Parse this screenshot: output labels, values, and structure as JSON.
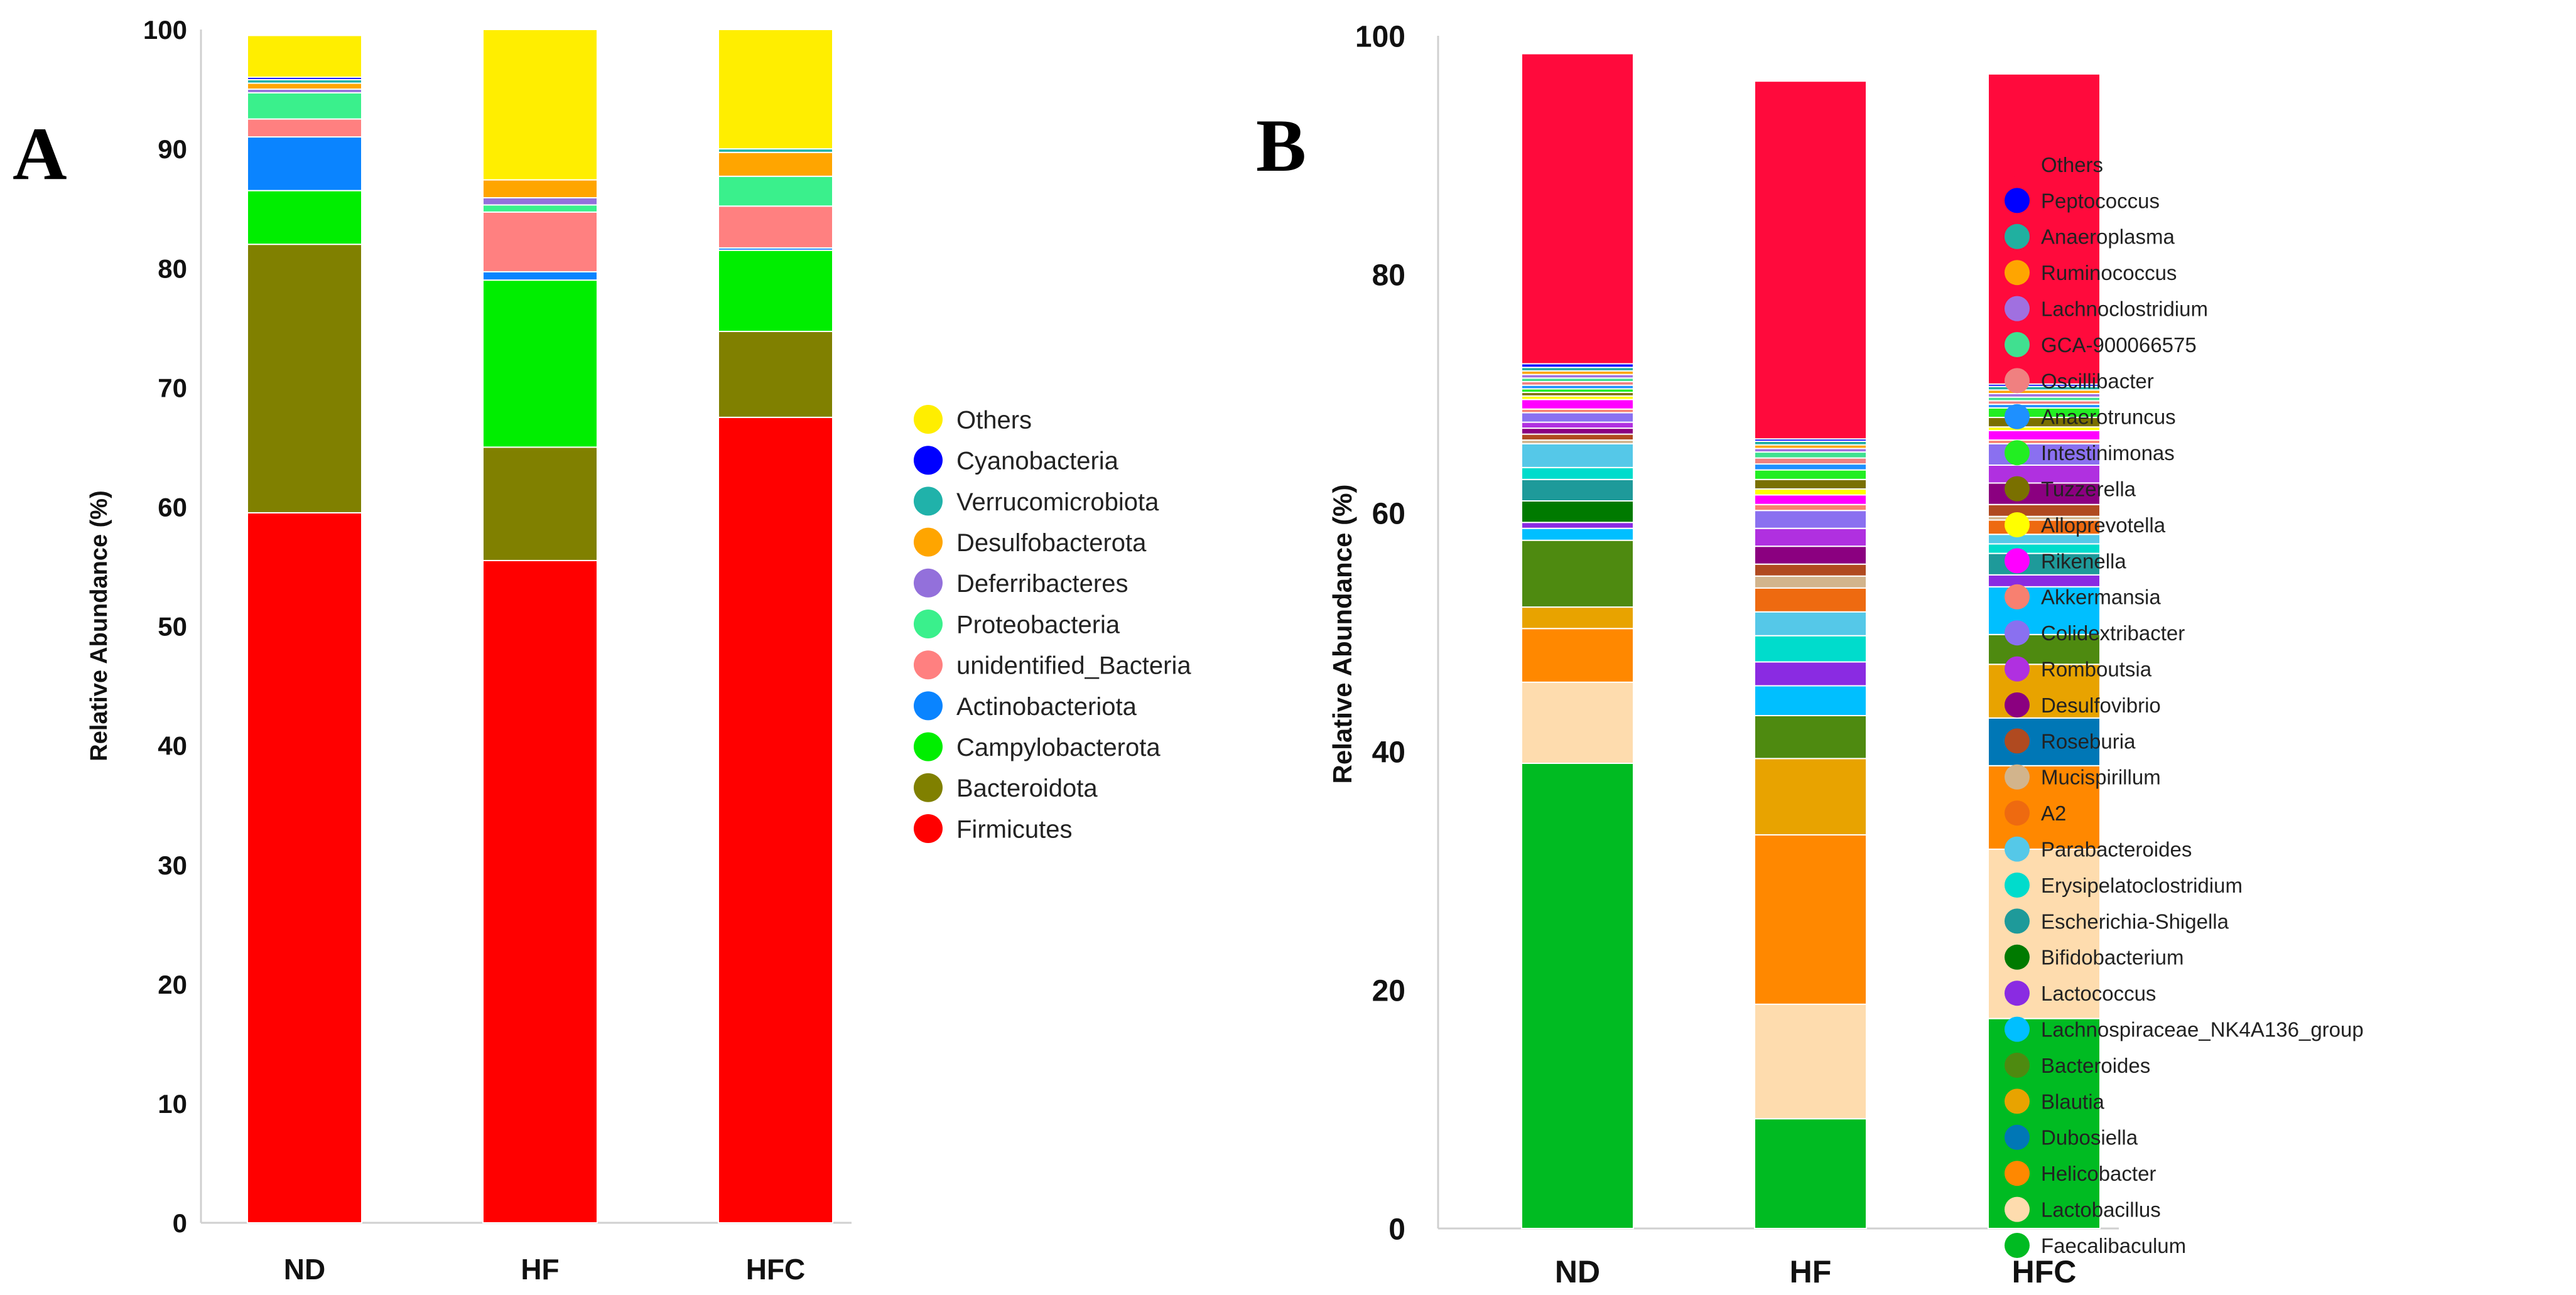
{
  "chart_data": [
    {
      "type": "stacked-bar",
      "panel_label": "A",
      "ylabel": "Relative Abundance (%)",
      "ylim": [
        0,
        100
      ],
      "yticks": [
        0,
        10,
        20,
        30,
        40,
        50,
        60,
        70,
        80,
        90,
        100
      ],
      "categories": [
        "ND",
        "HF",
        "HFC"
      ],
      "legend": [
        "Others",
        "Cyanobacteria",
        "Verrucomicrobiota",
        "Desulfobacterota",
        "Deferribacteres",
        "Proteobacteria",
        "unidentified_Bacteria",
        "Actinobacteriota",
        "Campylobacterota",
        "Bacteroidota",
        "Firmicutes"
      ],
      "series": [
        {
          "name": "Firmicutes",
          "color": "#ff0000",
          "values": [
            59.5,
            55.5,
            67.5
          ]
        },
        {
          "name": "Bacteroidota",
          "color": "#808000",
          "values": [
            22.5,
            9.5,
            7.2
          ]
        },
        {
          "name": "Campylobacterota",
          "color": "#00ee00",
          "values": [
            4.5,
            14.0,
            6.8
          ]
        },
        {
          "name": "Actinobacteriota",
          "color": "#0a84ff",
          "values": [
            4.5,
            0.7,
            0.2
          ]
        },
        {
          "name": "unidentified_Bacteria",
          "color": "#ff8080",
          "values": [
            1.5,
            5.0,
            3.5
          ]
        },
        {
          "name": "Proteobacteria",
          "color": "#3af08c",
          "values": [
            2.2,
            0.6,
            2.5
          ]
        },
        {
          "name": "Deferribacteres",
          "color": "#9370db",
          "values": [
            0.3,
            0.6,
            0.0
          ]
        },
        {
          "name": "Desulfobacterota",
          "color": "#ffa500",
          "values": [
            0.5,
            1.5,
            2.0
          ]
        },
        {
          "name": "Verrucomicrobiota",
          "color": "#20b2aa",
          "values": [
            0.3,
            0.0,
            0.3
          ]
        },
        {
          "name": "Cyanobacteria",
          "color": "#0000ff",
          "values": [
            0.2,
            0.0,
            0.0
          ]
        },
        {
          "name": "Others",
          "color": "#ffee00",
          "values": [
            3.5,
            12.6,
            10.0
          ]
        }
      ]
    },
    {
      "type": "stacked-bar",
      "panel_label": "B",
      "ylabel": "Relative Abundance (%)",
      "ylim": [
        0,
        100
      ],
      "yticks": [
        0,
        20,
        40,
        60,
        80,
        100
      ],
      "categories": [
        "ND",
        "HF",
        "HFC"
      ],
      "legend": [
        "Others",
        "Peptococcus",
        "Anaeroplasma",
        "Ruminococcus",
        "Lachnoclostridium",
        "GCA-900066575",
        "Oscillibacter",
        "Anaerotruncus",
        "Intestinimonas",
        "Tuzzerella",
        "Alloprevotella",
        "Rikenella",
        "Akkermansia",
        "Colidextribacter",
        "Romboutsia",
        "Desulfovibrio",
        "Roseburia",
        "Mucispirillum",
        "A2",
        "Parabacteroides",
        "Erysipelatoclostridium",
        "Escherichia-Shigella",
        "Bifidobacterium",
        "Lactococcus",
        "Lachnospiraceae_NK4A136_group",
        "Bacteroides",
        "Blautia",
        "Dubosiella",
        "Helicobacter",
        "Lactobacillus",
        "Faecalibaculum"
      ],
      "series": [
        {
          "name": "Faecalibaculum",
          "color": "#00bb22",
          "values": [
            39.0,
            9.2,
            17.6
          ]
        },
        {
          "name": "Lactobacillus",
          "color": "#fedcae",
          "values": [
            6.8,
            9.6,
            14.2
          ]
        },
        {
          "name": "Helicobacter",
          "color": "#ff8800",
          "values": [
            4.5,
            14.2,
            7.0
          ]
        },
        {
          "name": "Dubosiella",
          "color": "#0077b6",
          "values": [
            0.0,
            0.0,
            4.0
          ]
        },
        {
          "name": "Blautia",
          "color": "#e8a300",
          "values": [
            1.8,
            6.4,
            4.5
          ]
        },
        {
          "name": "Bacteroides",
          "color": "#4e8a10",
          "values": [
            5.6,
            3.6,
            2.5
          ]
        },
        {
          "name": "Lachnospiraceae_NK4A136_group",
          "color": "#00bfff",
          "values": [
            1.0,
            2.5,
            4.0
          ]
        },
        {
          "name": "Lactococcus",
          "color": "#8a2be2",
          "values": [
            0.5,
            2.0,
            1.0
          ]
        },
        {
          "name": "Bifidobacterium",
          "color": "#007a00",
          "values": [
            1.8,
            0.0,
            0.0
          ]
        },
        {
          "name": "Escherichia-Shigella",
          "color": "#1e9a9a",
          "values": [
            1.8,
            0.0,
            1.8
          ]
        },
        {
          "name": "Erysipelatoclostridium",
          "color": "#00dccc",
          "values": [
            1.0,
            2.2,
            0.8
          ]
        },
        {
          "name": "Parabacteroides",
          "color": "#55c8e8",
          "values": [
            2.0,
            2.0,
            0.8
          ]
        },
        {
          "name": "A2",
          "color": "#ee6a10",
          "values": [
            0.0,
            2.0,
            1.2
          ]
        },
        {
          "name": "Mucispirillum",
          "color": "#d2b48c",
          "values": [
            0.3,
            1.0,
            0.3
          ]
        },
        {
          "name": "Roseburia",
          "color": "#b04a20",
          "values": [
            0.5,
            1.0,
            1.0
          ]
        },
        {
          "name": "Desulfovibrio",
          "color": "#8b0080",
          "values": [
            0.5,
            1.5,
            1.8
          ]
        },
        {
          "name": "Romboutsia",
          "color": "#b030e0",
          "values": [
            0.5,
            1.5,
            1.5
          ]
        },
        {
          "name": "Colidextribacter",
          "color": "#8a70f0",
          "values": [
            0.8,
            1.5,
            1.8
          ]
        },
        {
          "name": "Akkermansia",
          "color": "#f88070",
          "values": [
            0.3,
            0.5,
            0.3
          ]
        },
        {
          "name": "Rikenella",
          "color": "#ff00ff",
          "values": [
            0.8,
            0.8,
            0.8
          ]
        },
        {
          "name": "Alloprevotella",
          "color": "#ffff00",
          "values": [
            0.3,
            0.5,
            0.3
          ]
        },
        {
          "name": "Tuzzerella",
          "color": "#7a7000",
          "values": [
            0.3,
            0.8,
            0.8
          ]
        },
        {
          "name": "Intestinimonas",
          "color": "#22ee22",
          "values": [
            0.3,
            0.8,
            0.8
          ]
        },
        {
          "name": "Anaerotruncus",
          "color": "#1e90ff",
          "values": [
            0.3,
            0.5,
            0.3
          ]
        },
        {
          "name": "Oscillibacter",
          "color": "#f08080",
          "values": [
            0.3,
            0.5,
            0.3
          ]
        },
        {
          "name": "GCA-900066575",
          "color": "#40e090",
          "values": [
            0.3,
            0.5,
            0.3
          ]
        },
        {
          "name": "Lachnoclostridium",
          "color": "#a070e0",
          "values": [
            0.3,
            0.3,
            0.3
          ]
        },
        {
          "name": "Ruminococcus",
          "color": "#ffa500",
          "values": [
            0.3,
            0.3,
            0.3
          ]
        },
        {
          "name": "Anaeroplasma",
          "color": "#20b0a0",
          "values": [
            0.3,
            0.3,
            0.3
          ]
        },
        {
          "name": "Peptococcus",
          "color": "#0000ff",
          "values": [
            0.3,
            0.2,
            0.2
          ]
        },
        {
          "name": "Others",
          "color": "#ff0a3c",
          "values": [
            26.0,
            30.0,
            26.0
          ]
        }
      ]
    }
  ]
}
